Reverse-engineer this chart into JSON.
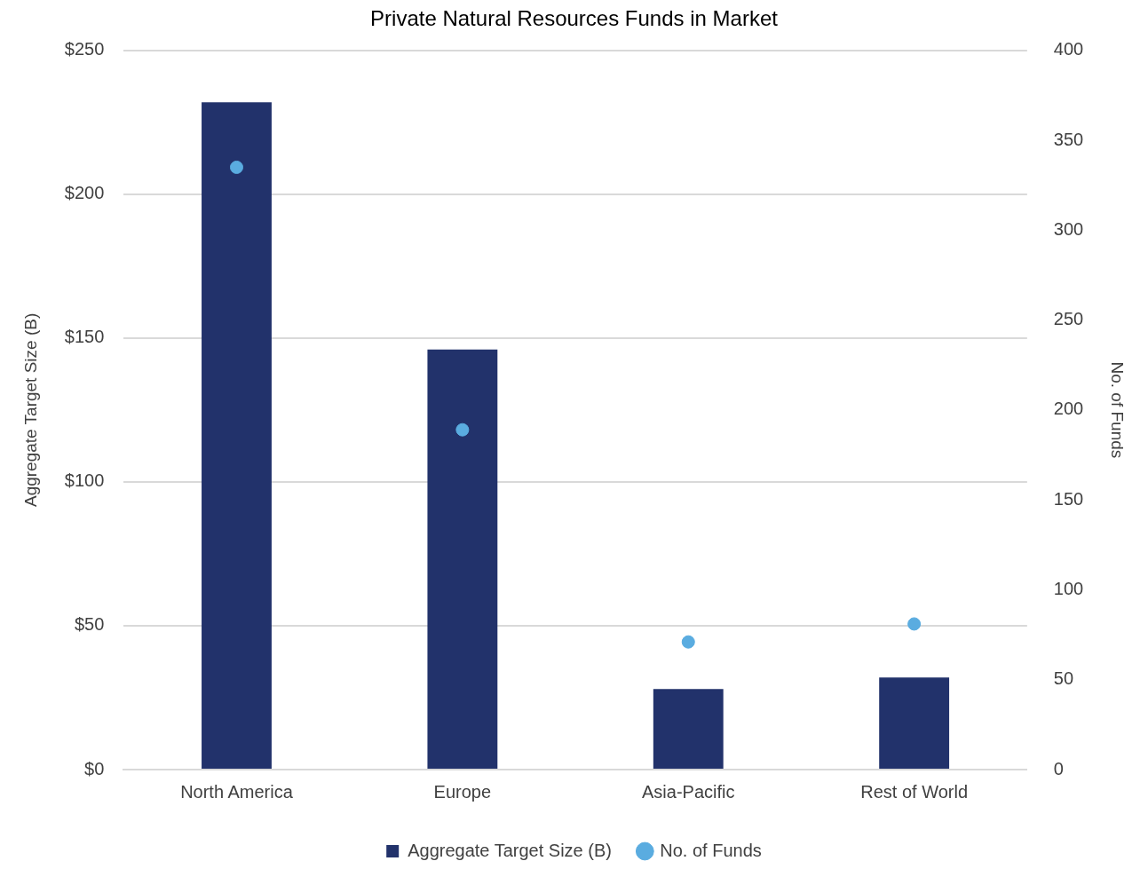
{
  "chart_data": {
    "type": "bar",
    "title": "Private Natural Resources Funds in Market",
    "categories": [
      "North America",
      "Europe",
      "Asia-Pacific",
      "Rest of World"
    ],
    "series": [
      {
        "name": "Aggregate Target Size (B)",
        "color": "#22326b",
        "values": [
          232,
          146,
          28,
          32
        ]
      },
      {
        "name": "No. of Funds",
        "type": "scatter",
        "axis": "y2",
        "color": "#5aace0",
        "values": [
          335,
          189,
          71,
          81
        ]
      }
    ],
    "ylabel": "Aggregate Target Size (B)",
    "y2label": "No. of Funds",
    "ylim": [
      0,
      250
    ],
    "yticks": [
      {
        "value": 0,
        "label": "$0"
      },
      {
        "value": 50,
        "label": "$50"
      },
      {
        "value": 100,
        "label": "$100"
      },
      {
        "value": 150,
        "label": "$150"
      },
      {
        "value": 200,
        "label": "$200"
      },
      {
        "value": 250,
        "label": "$250"
      }
    ],
    "y2lim": [
      0,
      400
    ],
    "y2ticks": [
      0,
      50,
      100,
      150,
      200,
      250,
      300,
      350,
      400
    ],
    "grid": "y",
    "legend": "bottom",
    "marker": "circle"
  }
}
